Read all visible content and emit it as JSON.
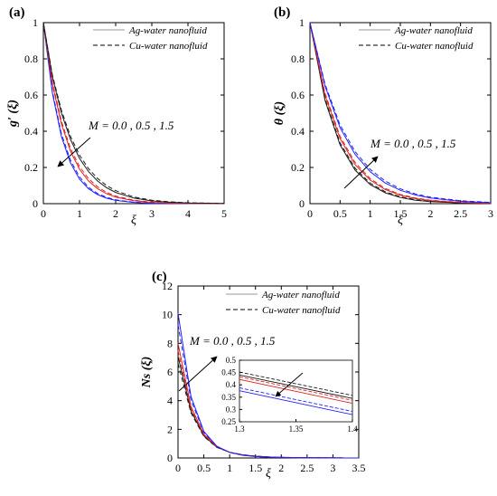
{
  "chart_data": [
    {
      "id": "a",
      "type": "line",
      "panel_label": "(a)",
      "xlabel": "ξ",
      "ylabel": "g′ (ξ)",
      "xlim": [
        0,
        5
      ],
      "ylim": [
        0,
        1
      ],
      "xticks": [
        "0",
        "1",
        "2",
        "3",
        "4",
        "5"
      ],
      "yticks": [
        "0",
        "0.2",
        "0.4",
        "0.6",
        "0.8",
        "1"
      ],
      "annotation": "M = 0.0 , 0.5 , 1.5",
      "legend": [
        "Ag-water nanofluid",
        "Cu-water nanofluid"
      ],
      "legend_position": "top-right",
      "series": [
        {
          "fluid": "Ag-water",
          "M": "0.0",
          "color": "#1f1fff",
          "dash": "solid",
          "x": [
            0,
            0.25,
            0.5,
            0.75,
            1,
            1.25,
            1.5,
            1.75,
            2,
            2.5,
            3,
            3.5,
            4,
            5
          ],
          "y": [
            1,
            0.61,
            0.37,
            0.225,
            0.135,
            0.082,
            0.05,
            0.03,
            0.018,
            0.007,
            0.002,
            0.001,
            0,
            0
          ]
        },
        {
          "fluid": "Cu-water",
          "M": "0.0",
          "color": "#1f1fff",
          "dash": "dashed",
          "x": [
            0,
            0.25,
            0.5,
            0.75,
            1,
            1.25,
            1.5,
            1.75,
            2,
            2.5,
            3,
            3.5,
            4,
            5
          ],
          "y": [
            1,
            0.62,
            0.385,
            0.24,
            0.148,
            0.09,
            0.056,
            0.035,
            0.021,
            0.008,
            0.003,
            0.001,
            0,
            0
          ]
        },
        {
          "fluid": "Ag-water",
          "M": "0.5",
          "color": "#e02020",
          "dash": "solid",
          "x": [
            0,
            0.25,
            0.5,
            0.75,
            1,
            1.25,
            1.5,
            1.75,
            2,
            2.5,
            3,
            3.5,
            4,
            5
          ],
          "y": [
            1,
            0.66,
            0.44,
            0.29,
            0.19,
            0.125,
            0.083,
            0.055,
            0.036,
            0.016,
            0.007,
            0.003,
            0.001,
            0
          ]
        },
        {
          "fluid": "Cu-water",
          "M": "0.5",
          "color": "#e02020",
          "dash": "dashed",
          "x": [
            0,
            0.25,
            0.5,
            0.75,
            1,
            1.25,
            1.5,
            1.75,
            2,
            2.5,
            3,
            3.5,
            4,
            5
          ],
          "y": [
            1,
            0.67,
            0.455,
            0.305,
            0.205,
            0.138,
            0.093,
            0.062,
            0.042,
            0.019,
            0.008,
            0.004,
            0.002,
            0
          ]
        },
        {
          "fluid": "Ag-water",
          "M": "1.5",
          "color": "#1a1a1a",
          "dash": "solid",
          "x": [
            0,
            0.25,
            0.5,
            0.75,
            1,
            1.25,
            1.5,
            1.75,
            2,
            2.5,
            3,
            3.5,
            4,
            5
          ],
          "y": [
            1,
            0.7,
            0.5,
            0.355,
            0.25,
            0.177,
            0.125,
            0.088,
            0.062,
            0.031,
            0.015,
            0.008,
            0.004,
            0.001
          ]
        },
        {
          "fluid": "Cu-water",
          "M": "1.5",
          "color": "#1a1a1a",
          "dash": "dashed",
          "x": [
            0,
            0.25,
            0.5,
            0.75,
            1,
            1.25,
            1.5,
            1.75,
            2,
            2.5,
            3,
            3.5,
            4,
            5
          ],
          "y": [
            1,
            0.71,
            0.515,
            0.372,
            0.268,
            0.193,
            0.139,
            0.1,
            0.072,
            0.037,
            0.019,
            0.01,
            0.005,
            0.001
          ]
        }
      ]
    },
    {
      "id": "b",
      "type": "line",
      "panel_label": "(b)",
      "xlabel": "ξ",
      "ylabel": "θ (ξ)",
      "xlim": [
        0,
        3
      ],
      "ylim": [
        0,
        1
      ],
      "xticks": [
        "0",
        "0.5",
        "1",
        "1.5",
        "2",
        "2.5",
        "3"
      ],
      "yticks": [
        "0",
        "0.2",
        "0.4",
        "0.6",
        "0.8",
        "1"
      ],
      "annotation": "M = 0.0 , 0.5 , 1.5",
      "legend": [
        "Ag-water nanofluid",
        "Cu-water nanofluid"
      ],
      "legend_position": "top-right",
      "series": [
        {
          "fluid": "Ag-water",
          "M": "0.0",
          "color": "#1a1a1a",
          "dash": "solid",
          "x": [
            0,
            0.25,
            0.5,
            0.75,
            1,
            1.25,
            1.5,
            1.75,
            2,
            2.5,
            3
          ],
          "y": [
            1,
            0.57,
            0.325,
            0.185,
            0.105,
            0.06,
            0.034,
            0.019,
            0.011,
            0.004,
            0.001
          ]
        },
        {
          "fluid": "Cu-water",
          "M": "0.0",
          "color": "#1a1a1a",
          "dash": "dashed",
          "x": [
            0,
            0.25,
            0.5,
            0.75,
            1,
            1.25,
            1.5,
            1.75,
            2,
            2.5,
            3
          ],
          "y": [
            1,
            0.58,
            0.336,
            0.195,
            0.113,
            0.066,
            0.038,
            0.022,
            0.013,
            0.004,
            0.001
          ]
        },
        {
          "fluid": "Ag-water",
          "M": "0.5",
          "color": "#e02020",
          "dash": "solid",
          "x": [
            0,
            0.25,
            0.5,
            0.75,
            1,
            1.25,
            1.5,
            1.75,
            2,
            2.5,
            3
          ],
          "y": [
            1,
            0.6,
            0.36,
            0.215,
            0.13,
            0.078,
            0.047,
            0.028,
            0.017,
            0.006,
            0.002
          ]
        },
        {
          "fluid": "Cu-water",
          "M": "0.5",
          "color": "#e02020",
          "dash": "dashed",
          "x": [
            0,
            0.25,
            0.5,
            0.75,
            1,
            1.25,
            1.5,
            1.75,
            2,
            2.5,
            3
          ],
          "y": [
            1,
            0.61,
            0.372,
            0.227,
            0.138,
            0.084,
            0.051,
            0.031,
            0.019,
            0.007,
            0.003
          ]
        },
        {
          "fluid": "Ag-water",
          "M": "1.5",
          "color": "#1f1fff",
          "dash": "solid",
          "x": [
            0,
            0.25,
            0.5,
            0.75,
            1,
            1.25,
            1.5,
            1.75,
            2,
            2.5,
            3
          ],
          "y": [
            1,
            0.65,
            0.42,
            0.272,
            0.176,
            0.114,
            0.074,
            0.048,
            0.031,
            0.013,
            0.005
          ]
        },
        {
          "fluid": "Cu-water",
          "M": "1.5",
          "color": "#1f1fff",
          "dash": "dashed",
          "x": [
            0,
            0.25,
            0.5,
            0.75,
            1,
            1.25,
            1.5,
            1.75,
            2,
            2.5,
            3
          ],
          "y": [
            1,
            0.66,
            0.435,
            0.287,
            0.189,
            0.125,
            0.082,
            0.054,
            0.036,
            0.016,
            0.007
          ]
        }
      ]
    },
    {
      "id": "c",
      "type": "line",
      "panel_label": "(c)",
      "xlabel": "ξ",
      "ylabel": "Ns (ξ)",
      "xlim": [
        0,
        3.5
      ],
      "ylim": [
        0,
        12
      ],
      "xticks": [
        "0",
        "0.5",
        "1",
        "1.5",
        "2",
        "2.5",
        "3",
        "3.5"
      ],
      "yticks": [
        "0",
        "2",
        "4",
        "6",
        "8",
        "10",
        "12"
      ],
      "annotation": "M = 0.0 , 0.5 , 1.5",
      "legend": [
        "Ag-water nanofluid",
        "Cu-water nanofluid"
      ],
      "legend_position": "top-right",
      "series": [
        {
          "fluid": "Ag-water",
          "M": "0.0",
          "color": "#1a1a1a",
          "dash": "solid",
          "x": [
            0,
            0.25,
            0.5,
            0.75,
            1,
            1.25,
            1.5,
            1.75,
            2,
            2.5,
            3,
            3.5
          ],
          "y": [
            7.1,
            3.3,
            1.55,
            0.75,
            0.4,
            0.22,
            0.12,
            0.07,
            0.04,
            0.015,
            0.005,
            0.002
          ]
        },
        {
          "fluid": "Cu-water",
          "M": "0.0",
          "color": "#1a1a1a",
          "dash": "dashed",
          "x": [
            0,
            0.25,
            0.5,
            0.75,
            1,
            1.25,
            1.5,
            1.75,
            2,
            2.5,
            3,
            3.5
          ],
          "y": [
            6.6,
            3.15,
            1.5,
            0.74,
            0.4,
            0.225,
            0.13,
            0.075,
            0.045,
            0.017,
            0.006,
            0.002
          ]
        },
        {
          "fluid": "Ag-water",
          "M": "0.5",
          "color": "#e02020",
          "dash": "solid",
          "x": [
            0,
            0.25,
            0.5,
            0.75,
            1,
            1.25,
            1.5,
            1.75,
            2,
            2.5,
            3,
            3.5
          ],
          "y": [
            8.0,
            3.6,
            1.65,
            0.78,
            0.4,
            0.21,
            0.115,
            0.065,
            0.037,
            0.013,
            0.005,
            0.002
          ]
        },
        {
          "fluid": "Cu-water",
          "M": "0.5",
          "color": "#e02020",
          "dash": "dashed",
          "x": [
            0,
            0.25,
            0.5,
            0.75,
            1,
            1.25,
            1.5,
            1.75,
            2,
            2.5,
            3,
            3.5
          ],
          "y": [
            7.5,
            3.45,
            1.6,
            0.77,
            0.4,
            0.215,
            0.12,
            0.068,
            0.04,
            0.014,
            0.005,
            0.002
          ]
        },
        {
          "fluid": "Ag-water",
          "M": "1.5",
          "color": "#1f1fff",
          "dash": "solid",
          "x": [
            0,
            0.25,
            0.5,
            0.75,
            1,
            1.25,
            1.5,
            1.75,
            2,
            2.5,
            3,
            3.5
          ],
          "y": [
            10.1,
            4.3,
            1.85,
            0.82,
            0.39,
            0.19,
            0.1,
            0.055,
            0.03,
            0.01,
            0.004,
            0.001
          ]
        },
        {
          "fluid": "Cu-water",
          "M": "1.5",
          "color": "#1f1fff",
          "dash": "dashed",
          "x": [
            0,
            0.25,
            0.5,
            0.75,
            1,
            1.25,
            1.5,
            1.75,
            2,
            2.5,
            3,
            3.5
          ],
          "y": [
            9.3,
            4.05,
            1.78,
            0.8,
            0.39,
            0.2,
            0.105,
            0.058,
            0.033,
            0.011,
            0.004,
            0.001
          ]
        }
      ],
      "inset": {
        "xlim": [
          1.3,
          1.4
        ],
        "ylim": [
          0.25,
          0.5
        ],
        "xticks": [
          "1.3",
          "1.35",
          "1.4"
        ],
        "yticks": [
          "0.25",
          "0.3",
          "0.35",
          "0.4",
          "0.45",
          "0.5"
        ],
        "series": [
          {
            "M": "0.0",
            "fluid": "Cu-water",
            "color": "#1a1a1a",
            "dash": "dashed",
            "x": [
              1.3,
              1.4
            ],
            "y": [
              0.452,
              0.357
            ]
          },
          {
            "M": "0.0",
            "fluid": "Ag-water",
            "color": "#1a1a1a",
            "dash": "solid",
            "x": [
              1.3,
              1.4
            ],
            "y": [
              0.44,
              0.345
            ]
          },
          {
            "M": "0.5",
            "fluid": "Cu-water",
            "color": "#e02020",
            "dash": "dashed",
            "x": [
              1.3,
              1.4
            ],
            "y": [
              0.433,
              0.337
            ]
          },
          {
            "M": "0.5",
            "fluid": "Ag-water",
            "color": "#e02020",
            "dash": "solid",
            "x": [
              1.3,
              1.4
            ],
            "y": [
              0.422,
              0.325
            ]
          },
          {
            "M": "1.5",
            "fluid": "Cu-water",
            "color": "#1f1fff",
            "dash": "dashed",
            "x": [
              1.3,
              1.4
            ],
            "y": [
              0.388,
              0.292
            ]
          },
          {
            "M": "1.5",
            "fluid": "Ag-water",
            "color": "#1f1fff",
            "dash": "solid",
            "x": [
              1.3,
              1.4
            ],
            "y": [
              0.376,
              0.279
            ]
          }
        ]
      }
    }
  ]
}
